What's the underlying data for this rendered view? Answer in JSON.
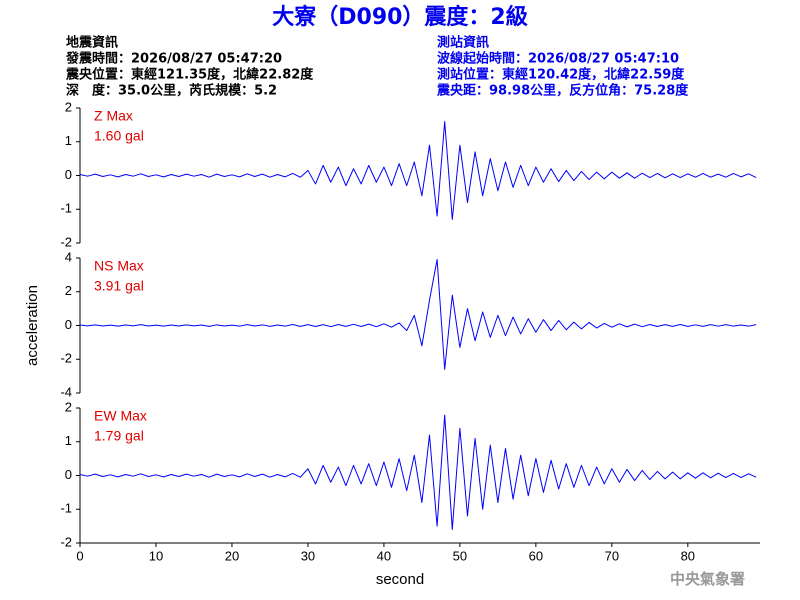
{
  "header": {
    "title": "大寮（D090）震度：2級",
    "left": [
      "地震資訊",
      "發震時間：2026/08/27 05:47:20",
      "震央位置：東經121.35度，北緯22.82度",
      "深　度：35.0公里，芮氏規模：5.2"
    ],
    "right": [
      "測站資訊",
      "波線起始時間：2026/08/27 05:47:10",
      "測站位置：東經120.42度，北緯22.59度",
      "震央距：98.98公里，反方位角：75.28度"
    ]
  },
  "footer": "中央氣象署",
  "chart_data": [
    {
      "type": "line",
      "title": "Z Max",
      "annotation": "1.60 gal",
      "color": "#0000ff",
      "label_color": "#e00000",
      "xlim": [
        0,
        89.5
      ],
      "ylim": [
        -2,
        2
      ],
      "yticks": [
        -2,
        -1,
        0,
        1,
        2
      ],
      "x": [
        0,
        1,
        2,
        3,
        4,
        5,
        6,
        7,
        8,
        9,
        10,
        11,
        12,
        13,
        14,
        15,
        16,
        17,
        18,
        19,
        20,
        21,
        22,
        23,
        24,
        25,
        26,
        27,
        28,
        29,
        30,
        31,
        32,
        33,
        34,
        35,
        36,
        37,
        38,
        39,
        40,
        41,
        42,
        43,
        44,
        45,
        46,
        47,
        48,
        49,
        50,
        51,
        52,
        53,
        54,
        55,
        56,
        57,
        58,
        59,
        60,
        61,
        62,
        63,
        64,
        65,
        66,
        67,
        68,
        69,
        70,
        71,
        72,
        73,
        74,
        75,
        76,
        77,
        78,
        79,
        80,
        81,
        82,
        83,
        84,
        85,
        86,
        87,
        88,
        89
      ],
      "values": [
        0.03,
        -0.02,
        0.04,
        -0.03,
        0.02,
        -0.04,
        0.03,
        -0.02,
        0.05,
        -0.03,
        0.02,
        -0.04,
        0.03,
        -0.03,
        0.04,
        -0.02,
        0.03,
        -0.05,
        0.04,
        -0.03,
        0.02,
        -0.04,
        0.05,
        -0.03,
        0.04,
        -0.05,
        0.03,
        -0.04,
        0.06,
        -0.05,
        0.15,
        -0.25,
        0.3,
        -0.2,
        0.25,
        -0.3,
        0.2,
        -0.25,
        0.3,
        -0.2,
        0.25,
        -0.3,
        0.35,
        -0.3,
        0.4,
        -0.6,
        0.9,
        -1.2,
        1.6,
        -1.3,
        0.9,
        -0.8,
        0.7,
        -0.6,
        0.5,
        -0.45,
        0.4,
        -0.35,
        0.3,
        -0.3,
        0.25,
        -0.2,
        0.2,
        -0.18,
        0.15,
        -0.15,
        0.12,
        -0.12,
        0.1,
        -0.1,
        0.1,
        -0.08,
        0.08,
        -0.08,
        0.07,
        -0.06,
        0.06,
        -0.07,
        0.05,
        -0.06,
        0.05,
        -0.05,
        0.06,
        -0.05,
        0.04,
        -0.05,
        0.06,
        -0.04,
        0.05,
        -0.06
      ]
    },
    {
      "type": "line",
      "title": "NS Max",
      "annotation": "3.91 gal",
      "color": "#0000ff",
      "label_color": "#e00000",
      "ylabel": "acceleration",
      "xlim": [
        0,
        89.5
      ],
      "ylim": [
        -4,
        4
      ],
      "yticks": [
        -4,
        -2,
        0,
        2,
        4
      ],
      "x": [
        0,
        1,
        2,
        3,
        4,
        5,
        6,
        7,
        8,
        9,
        10,
        11,
        12,
        13,
        14,
        15,
        16,
        17,
        18,
        19,
        20,
        21,
        22,
        23,
        24,
        25,
        26,
        27,
        28,
        29,
        30,
        31,
        32,
        33,
        34,
        35,
        36,
        37,
        38,
        39,
        40,
        41,
        42,
        43,
        44,
        45,
        46,
        47,
        48,
        49,
        50,
        51,
        52,
        53,
        54,
        55,
        56,
        57,
        58,
        59,
        60,
        61,
        62,
        63,
        64,
        65,
        66,
        67,
        68,
        69,
        70,
        71,
        72,
        73,
        74,
        75,
        76,
        77,
        78,
        79,
        80,
        81,
        82,
        83,
        84,
        85,
        86,
        87,
        88,
        89
      ],
      "values": [
        0.03,
        -0.02,
        0.04,
        -0.03,
        0.02,
        -0.04,
        0.03,
        -0.02,
        0.05,
        -0.03,
        0.02,
        -0.04,
        0.03,
        -0.03,
        0.04,
        -0.02,
        0.03,
        -0.05,
        0.04,
        -0.03,
        0.02,
        -0.04,
        0.05,
        -0.03,
        0.04,
        -0.05,
        0.03,
        -0.04,
        0.06,
        -0.05,
        0.05,
        -0.06,
        0.05,
        -0.07,
        0.06,
        -0.05,
        0.07,
        -0.06,
        0.08,
        -0.07,
        0.1,
        -0.1,
        0.15,
        -0.3,
        0.6,
        -1.2,
        1.5,
        3.91,
        -2.6,
        1.8,
        -1.3,
        1.0,
        -0.9,
        0.8,
        -0.7,
        0.6,
        -0.6,
        0.5,
        -0.5,
        0.4,
        -0.4,
        0.35,
        -0.3,
        0.3,
        -0.25,
        0.2,
        -0.2,
        0.18,
        -0.15,
        0.12,
        -0.1,
        0.1,
        -0.08,
        0.08,
        -0.07,
        0.06,
        -0.06,
        0.05,
        -0.05,
        0.06,
        -0.05,
        0.04,
        -0.05,
        0.05,
        -0.04,
        0.05,
        -0.04,
        0.03,
        -0.04,
        0.05
      ]
    },
    {
      "type": "line",
      "title": "EW Max",
      "annotation": "1.79 gal",
      "color": "#0000ff",
      "label_color": "#e00000",
      "xlabel": "second",
      "xlim": [
        0,
        89.5
      ],
      "xticks": [
        0,
        10,
        20,
        30,
        40,
        50,
        60,
        70,
        80
      ],
      "ylim": [
        -2,
        2
      ],
      "yticks": [
        -2,
        -1,
        0,
        1,
        2
      ],
      "x": [
        0,
        1,
        2,
        3,
        4,
        5,
        6,
        7,
        8,
        9,
        10,
        11,
        12,
        13,
        14,
        15,
        16,
        17,
        18,
        19,
        20,
        21,
        22,
        23,
        24,
        25,
        26,
        27,
        28,
        29,
        30,
        31,
        32,
        33,
        34,
        35,
        36,
        37,
        38,
        39,
        40,
        41,
        42,
        43,
        44,
        45,
        46,
        47,
        48,
        49,
        50,
        51,
        52,
        53,
        54,
        55,
        56,
        57,
        58,
        59,
        60,
        61,
        62,
        63,
        64,
        65,
        66,
        67,
        68,
        69,
        70,
        71,
        72,
        73,
        74,
        75,
        76,
        77,
        78,
        79,
        80,
        81,
        82,
        83,
        84,
        85,
        86,
        87,
        88,
        89
      ],
      "values": [
        0.03,
        -0.02,
        0.04,
        -0.03,
        0.02,
        -0.04,
        0.03,
        -0.02,
        0.05,
        -0.03,
        0.02,
        -0.04,
        0.03,
        -0.03,
        0.04,
        -0.02,
        0.03,
        -0.05,
        0.04,
        -0.03,
        0.02,
        -0.04,
        0.05,
        -0.03,
        0.04,
        -0.05,
        0.03,
        -0.04,
        0.06,
        -0.05,
        0.2,
        -0.25,
        0.3,
        -0.2,
        0.25,
        -0.3,
        0.3,
        -0.25,
        0.35,
        -0.3,
        0.4,
        -0.35,
        0.5,
        -0.45,
        0.6,
        -0.8,
        1.2,
        -1.5,
        1.79,
        -1.6,
        1.4,
        -1.2,
        1.1,
        -1.0,
        0.9,
        -0.8,
        0.8,
        -0.7,
        0.6,
        -0.6,
        0.5,
        -0.5,
        0.45,
        -0.4,
        0.35,
        -0.35,
        0.3,
        -0.3,
        0.25,
        -0.25,
        0.2,
        -0.2,
        0.18,
        -0.15,
        0.15,
        -0.12,
        0.12,
        -0.1,
        0.1,
        -0.1,
        0.08,
        -0.08,
        0.08,
        -0.07,
        0.07,
        -0.06,
        0.06,
        -0.06,
        0.05,
        -0.05
      ]
    }
  ]
}
